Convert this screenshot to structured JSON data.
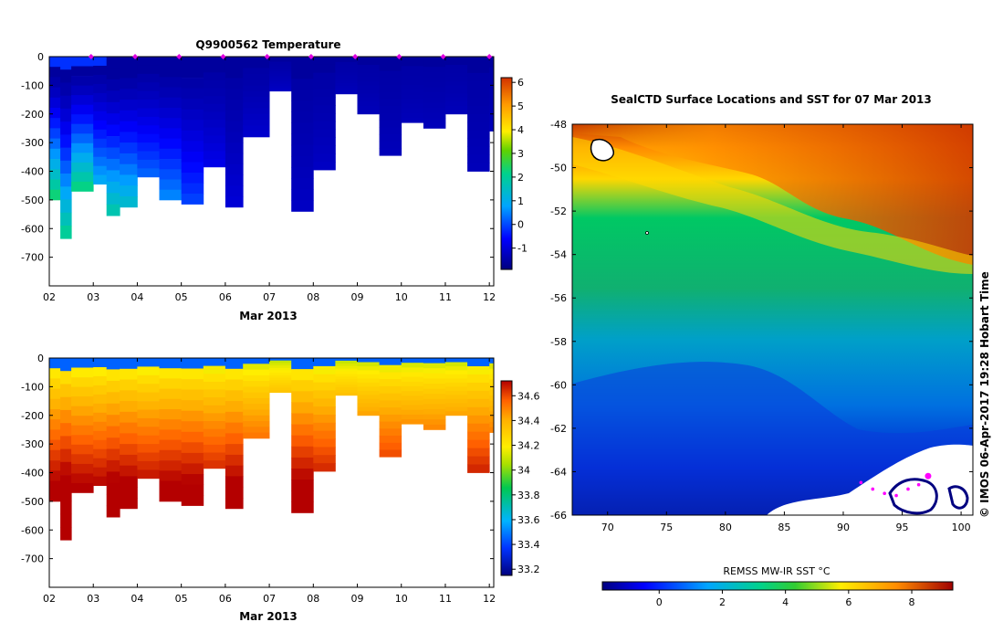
{
  "chart_data": [
    {
      "type": "heatmap",
      "title": "Q9900562  Temperature",
      "xlabel": "Mar 2013",
      "ylabel": "",
      "x_ticks": [
        "02",
        "03",
        "04",
        "05",
        "06",
        "07",
        "08",
        "09",
        "10",
        "11",
        "12"
      ],
      "y_ticks": [
        "0",
        "-100",
        "-200",
        "-300",
        "-400",
        "-500",
        "-600",
        "-700"
      ],
      "xlim": [
        2.0,
        12.1
      ],
      "ylim": [
        -800,
        0
      ],
      "colorbar": {
        "ticks": [
          "-1",
          "0",
          "1",
          "2",
          "3",
          "4",
          "5",
          "6"
        ],
        "min": -1.9,
        "max": 6.2
      },
      "profiles": [
        {
          "day": 2.0,
          "depth": 500,
          "bottom": 2.5
        },
        {
          "day": 2.25,
          "depth": 635,
          "bottom": 2.2
        },
        {
          "day": 2.5,
          "depth": 470,
          "bottom": 2.4
        },
        {
          "day": 3.0,
          "depth": 445,
          "bottom": 1.0
        },
        {
          "day": 3.3,
          "depth": 555,
          "bottom": 1.9
        },
        {
          "day": 3.6,
          "depth": 525,
          "bottom": 1.5
        },
        {
          "day": 4.0,
          "depth": 420,
          "bottom": 0.3
        },
        {
          "day": 4.5,
          "depth": 500,
          "bottom": 0.6
        },
        {
          "day": 5.0,
          "depth": 515,
          "bottom": 0.0
        },
        {
          "day": 5.5,
          "depth": 385,
          "bottom": -0.8
        },
        {
          "day": 6.0,
          "depth": 525,
          "bottom": -1.0
        },
        {
          "day": 6.4,
          "depth": 280,
          "bottom": -1.1
        },
        {
          "day": 7.0,
          "depth": 120,
          "bottom": -1.2
        },
        {
          "day": 7.5,
          "depth": 540,
          "bottom": -1.2
        },
        {
          "day": 8.0,
          "depth": 395,
          "bottom": -1.2
        },
        {
          "day": 8.5,
          "depth": 130,
          "bottom": -1.3
        },
        {
          "day": 9.0,
          "depth": 200,
          "bottom": -1.3
        },
        {
          "day": 9.5,
          "depth": 345,
          "bottom": -1.3
        },
        {
          "day": 10.0,
          "depth": 230,
          "bottom": -1.3
        },
        {
          "day": 10.5,
          "depth": 250,
          "bottom": -1.3
        },
        {
          "day": 11.0,
          "depth": 200,
          "bottom": -1.3
        },
        {
          "day": 11.5,
          "depth": 400,
          "bottom": -1.3
        },
        {
          "day": 12.0,
          "depth": 260,
          "bottom": -1.3
        }
      ],
      "surface_markers_days": [
        2.95,
        3.95,
        4.95,
        5.95,
        6.95,
        7.95,
        8.95,
        9.95,
        10.95,
        12.0
      ]
    },
    {
      "type": "heatmap",
      "title": "",
      "xlabel": "Mar 2013",
      "ylabel": "",
      "x_ticks": [
        "02",
        "03",
        "04",
        "05",
        "06",
        "07",
        "08",
        "09",
        "10",
        "11",
        "12"
      ],
      "y_ticks": [
        "0",
        "-100",
        "-200",
        "-300",
        "-400",
        "-500",
        "-600",
        "-700"
      ],
      "xlim": [
        2.0,
        12.1
      ],
      "ylim": [
        -800,
        0
      ],
      "colorbar": {
        "ticks": [
          "33.2",
          "33.4",
          "33.6",
          "33.8",
          "34",
          "34.2",
          "34.4",
          "34.6"
        ],
        "min": 33.15,
        "max": 34.72
      }
    },
    {
      "type": "heatmap",
      "title": "SealCTD Surface Locations and SST for 07 Mar 2013",
      "xlabel": "",
      "ylabel": "",
      "x_ticks": [
        "70",
        "75",
        "80",
        "85",
        "90",
        "95",
        "100"
      ],
      "y_ticks": [
        "-48",
        "-50",
        "-52",
        "-54",
        "-56",
        "-58",
        "-60",
        "-62",
        "-64",
        "-66"
      ],
      "xlim": [
        67.0,
        101.0
      ],
      "ylim": [
        -66,
        -48
      ],
      "colorbar": {
        "label": "REMSS MW-IR SST °C",
        "ticks": [
          "0",
          "2",
          "4",
          "6",
          "8"
        ],
        "min": -1.8,
        "max": 9.3
      },
      "seal_track": [
        [
          91.5,
          -64.5
        ],
        [
          92.5,
          -64.8
        ],
        [
          93.5,
          -65.0
        ],
        [
          94.5,
          -65.1
        ],
        [
          95.5,
          -64.8
        ],
        [
          96.4,
          -64.6
        ],
        [
          97.2,
          -64.2
        ]
      ],
      "credit": "© IMOS 06-Apr-2017 19:28 Hobart Time"
    }
  ]
}
